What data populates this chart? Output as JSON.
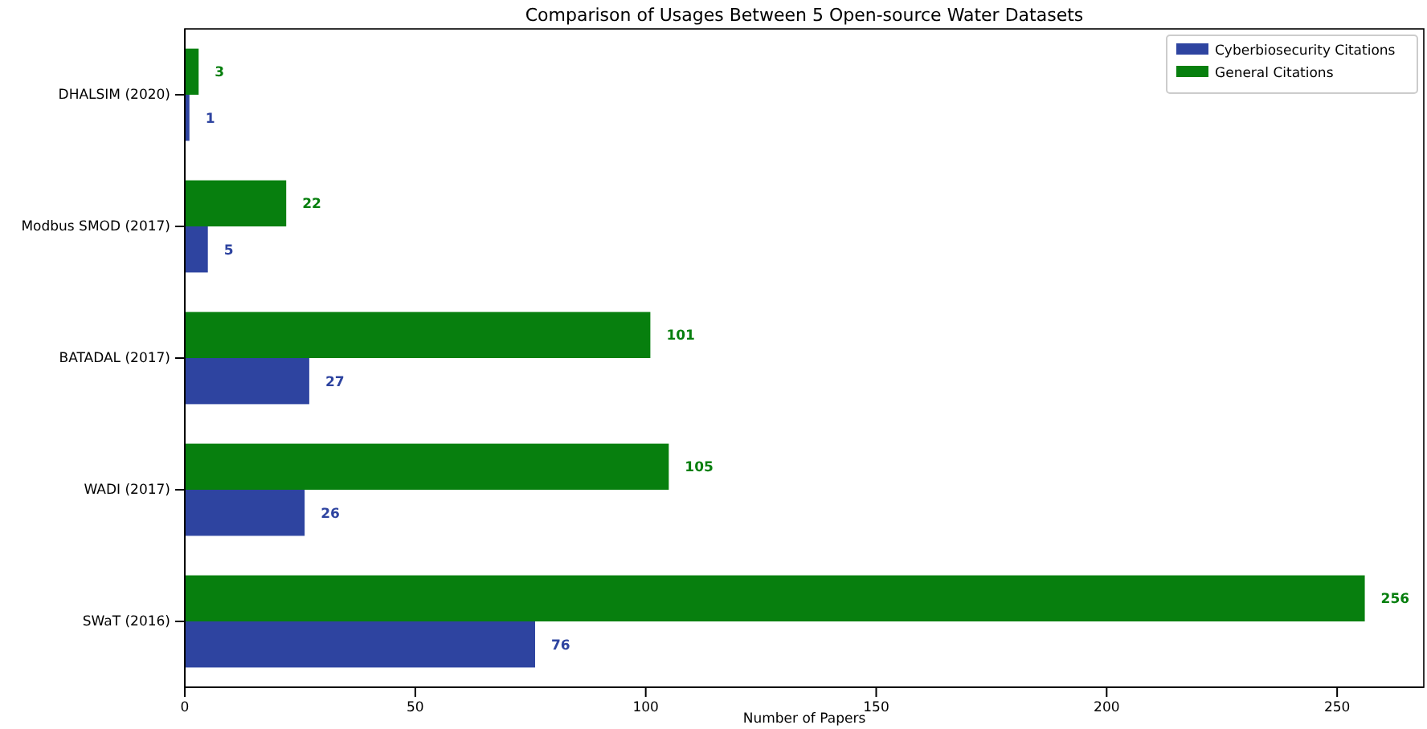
{
  "chart_data": {
    "type": "bar",
    "orientation": "horizontal",
    "title": "Comparison of Usages Between 5 Open-source Water Datasets",
    "xlabel": "Number of Papers",
    "categories": [
      "DHALSIM (2020)",
      "Modbus SMOD (2017)",
      "BATADAL (2017)",
      "WADI (2017)",
      "SWaT (2016)"
    ],
    "series": [
      {
        "name": "Cyberbiosecurity Citations",
        "color": "#2e44a0",
        "values": [
          1,
          5,
          27,
          26,
          76
        ]
      },
      {
        "name": "General Citations",
        "color": "#077f0e",
        "values": [
          3,
          22,
          101,
          105,
          256
        ]
      }
    ],
    "xlim": [
      0,
      268.8
    ],
    "xticks": [
      0,
      50,
      100,
      150,
      200,
      250
    ],
    "data_labels": true,
    "legend": "top right"
  }
}
